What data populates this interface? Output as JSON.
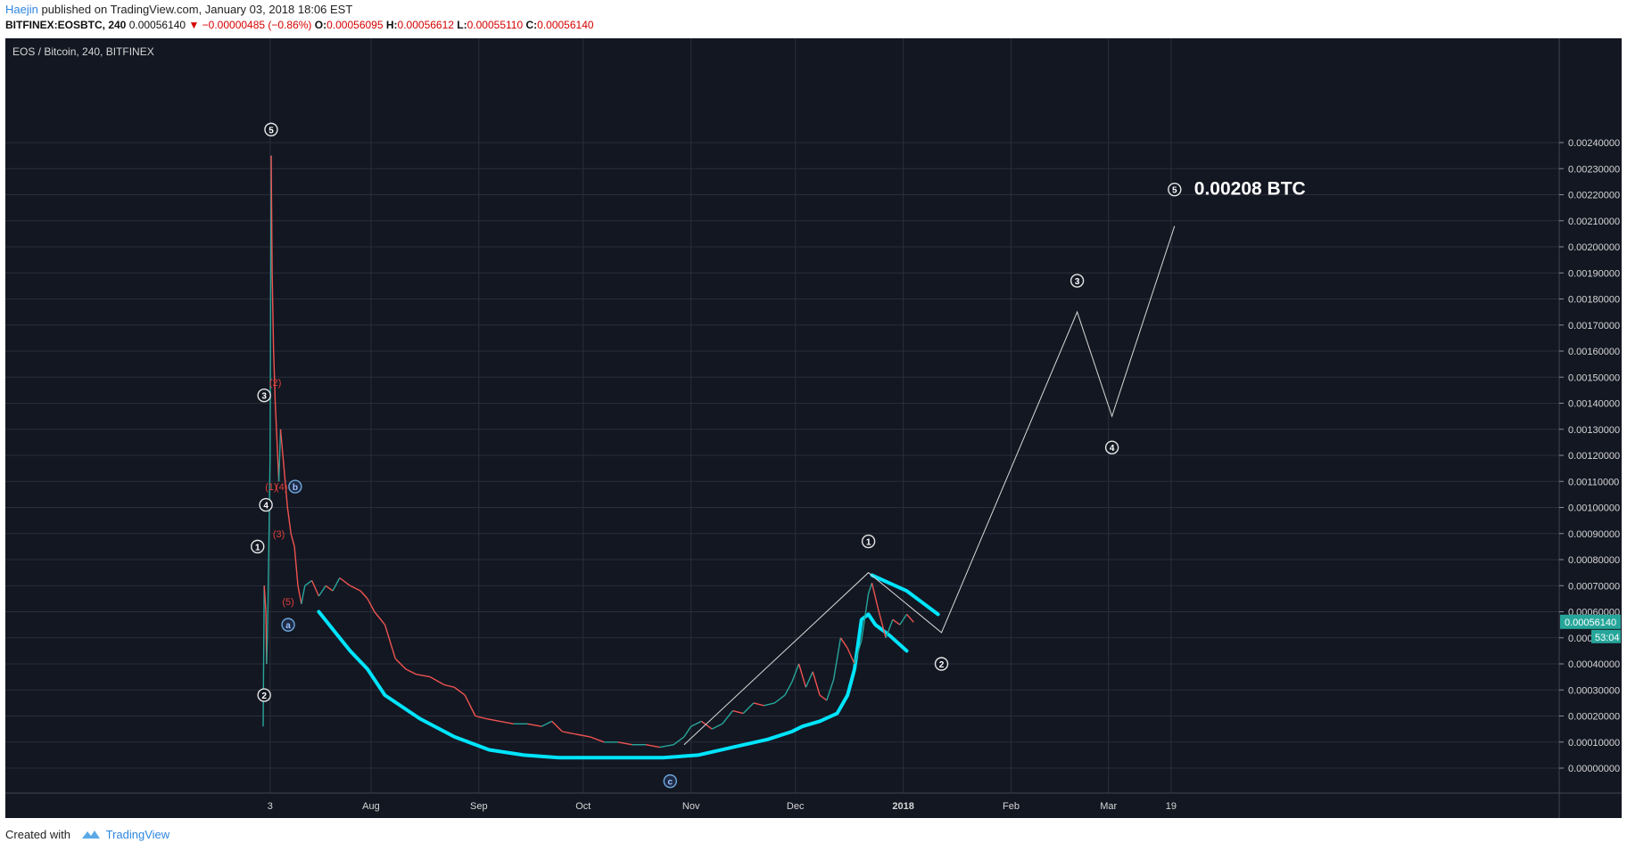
{
  "header": {
    "author": "Haejin",
    "published_text": " published on TradingView.com, January 03, 2018 18:06 EST",
    "symbol_interval": "BITFINEX:EOSBTC, 240",
    "last": "0.00056140",
    "change": "▼ −0.00000485 (−0.86%)",
    "o_label": "O:",
    "o_value": "0.00056095",
    "h_label": "H:",
    "h_value": "0.00056612",
    "l_label": "L:",
    "l_value": "0.00055110",
    "c_label": "C:",
    "c_value": "0.00056140"
  },
  "chart_title": "EOS / Bitcoin, 240, BITFINEX",
  "footer": {
    "created_with": "Created with",
    "brand": "TradingView"
  },
  "colors": {
    "background": "#131722",
    "curve": "#00e5ff",
    "up": "#26a69a",
    "down": "#ef5350",
    "grid": "#2a2e39",
    "price_tag": "#26a69a"
  },
  "chart_data": {
    "type": "line",
    "ylim": [
      0,
      0.0025
    ],
    "y_ticks": [
      "0.00240000",
      "0.00230000",
      "0.00220000",
      "0.00210000",
      "0.00200000",
      "0.00190000",
      "0.00180000",
      "0.00170000",
      "0.00160000",
      "0.00150000",
      "0.00140000",
      "0.00130000",
      "0.00120000",
      "0.00110000",
      "0.00100000",
      "0.00090000",
      "0.00080000",
      "0.00070000",
      "0.00060000",
      "0.00050000",
      "0.00040000",
      "0.00030000",
      "0.00020000",
      "0.00010000",
      "0.00000000"
    ],
    "x_ticks": [
      "3",
      "Aug",
      "Sep",
      "Oct",
      "Nov",
      "Dec",
      "2018",
      "Feb",
      "Mar",
      "19"
    ],
    "x_tick_days": [
      2,
      31,
      62,
      92,
      123,
      153,
      184,
      215,
      243,
      261
    ],
    "last_price_label": "0.00056140",
    "countdown_label": "53:04",
    "price_series": {
      "name": "EOSBTC",
      "points": [
        [
          0,
          0.00016
        ],
        [
          0.3,
          0.0007
        ],
        [
          0.8,
          0.0006
        ],
        [
          1.0,
          0.0004
        ],
        [
          1.3,
          0.00055
        ],
        [
          1.7,
          0.0009
        ],
        [
          2.0,
          0.0012
        ],
        [
          2.3,
          0.00235
        ],
        [
          2.6,
          0.0019
        ],
        [
          3.0,
          0.0016
        ],
        [
          3.5,
          0.0014
        ],
        [
          4.0,
          0.00125
        ],
        [
          4.5,
          0.0011
        ],
        [
          5,
          0.0013
        ],
        [
          6,
          0.00115
        ],
        [
          7,
          0.001
        ],
        [
          8,
          0.0009
        ],
        [
          9,
          0.00085
        ],
        [
          10,
          0.0007
        ],
        [
          11,
          0.00063
        ],
        [
          12,
          0.0007
        ],
        [
          14,
          0.00072
        ],
        [
          16,
          0.00066
        ],
        [
          18,
          0.0007
        ],
        [
          20,
          0.00068
        ],
        [
          22,
          0.00073
        ],
        [
          25,
          0.0007
        ],
        [
          28,
          0.00068
        ],
        [
          30,
          0.00065
        ],
        [
          32,
          0.0006
        ],
        [
          35,
          0.00055
        ],
        [
          38,
          0.00042
        ],
        [
          41,
          0.00038
        ],
        [
          44,
          0.00036
        ],
        [
          48,
          0.00035
        ],
        [
          52,
          0.00032
        ],
        [
          55,
          0.00031
        ],
        [
          58,
          0.00028
        ],
        [
          61,
          0.0002
        ],
        [
          64,
          0.00019
        ],
        [
          68,
          0.00018
        ],
        [
          72,
          0.00017
        ],
        [
          76,
          0.00017
        ],
        [
          80,
          0.00016
        ],
        [
          83,
          0.00018
        ],
        [
          86,
          0.00014
        ],
        [
          90,
          0.00013
        ],
        [
          94,
          0.00012
        ],
        [
          98,
          0.0001
        ],
        [
          102,
          0.0001
        ],
        [
          106,
          9e-05
        ],
        [
          110,
          9e-05
        ],
        [
          114,
          8e-05
        ],
        [
          118,
          9e-05
        ],
        [
          121,
          0.00012
        ],
        [
          123,
          0.00016
        ],
        [
          126,
          0.00018
        ],
        [
          129,
          0.00015
        ],
        [
          132,
          0.00017
        ],
        [
          135,
          0.00022
        ],
        [
          138,
          0.00021
        ],
        [
          141,
          0.00025
        ],
        [
          144,
          0.00024
        ],
        [
          147,
          0.00025
        ],
        [
          150,
          0.00028
        ],
        [
          152,
          0.00033
        ],
        [
          154,
          0.0004
        ],
        [
          156,
          0.00031
        ],
        [
          158,
          0.00037
        ],
        [
          160,
          0.00028
        ],
        [
          162,
          0.00026
        ],
        [
          164,
          0.00034
        ],
        [
          166,
          0.0005
        ],
        [
          168,
          0.00046
        ],
        [
          170,
          0.0004
        ],
        [
          172,
          0.00049
        ],
        [
          174,
          0.00067
        ],
        [
          175,
          0.00071
        ],
        [
          177,
          0.0006
        ],
        [
          179,
          0.0005
        ],
        [
          181,
          0.00057
        ],
        [
          183,
          0.00055
        ],
        [
          185,
          0.00059
        ],
        [
          187,
          0.00056
        ]
      ]
    },
    "projection_series": {
      "name": "",
      "points": [
        [
          121,
          9e-05
        ],
        [
          174,
          0.00075
        ],
        [
          195,
          0.00052
        ],
        [
          234,
          0.00175
        ],
        [
          244,
          0.00135
        ],
        [
          262,
          0.00208
        ]
      ]
    },
    "annotations": [
      {
        "text": "5",
        "x": 2.3,
        "y": 0.00245,
        "style": "white"
      },
      {
        "text": "3",
        "x": 0.3,
        "y": 0.00143,
        "style": "white"
      },
      {
        "text": "4",
        "x": 0.8,
        "y": 0.00101,
        "style": "white"
      },
      {
        "text": "1",
        "x": -1.6,
        "y": 0.00085,
        "style": "white"
      },
      {
        "text": "2",
        "x": 0.3,
        "y": 0.00028,
        "style": "white"
      },
      {
        "text": "(2)",
        "x": 3.5,
        "y": 0.00148,
        "style": "red"
      },
      {
        "text": "(1)",
        "x": 2.3,
        "y": 0.00108,
        "style": "red"
      },
      {
        "text": "(4)",
        "x": 5.3,
        "y": 0.00108,
        "style": "red"
      },
      {
        "text": "(3)",
        "x": 4.5,
        "y": 0.0009,
        "style": "red"
      },
      {
        "text": "(5)",
        "x": 7.2,
        "y": 0.00064,
        "style": "red"
      },
      {
        "text": "b",
        "x": 9.2,
        "y": 0.00108,
        "style": "blue"
      },
      {
        "text": "a",
        "x": 7.2,
        "y": 0.00055,
        "style": "blue"
      },
      {
        "text": "c",
        "x": 117,
        "y": -5e-05,
        "style": "blue"
      },
      {
        "text": "1",
        "x": 174,
        "y": 0.00087,
        "style": "white"
      },
      {
        "text": "2",
        "x": 195,
        "y": 0.0004,
        "style": "white"
      },
      {
        "text": "3",
        "x": 234,
        "y": 0.00187,
        "style": "white"
      },
      {
        "text": "4",
        "x": 244,
        "y": 0.00123,
        "style": "white"
      },
      {
        "text": "5",
        "x": 262,
        "y": 0.00222,
        "style": "white"
      }
    ],
    "target_label": "0.00208 BTC",
    "target_point": [
      262,
      0.00222
    ],
    "highlight_curves": [
      {
        "name": "",
        "points": [
          [
            16,
            0.0006
          ],
          [
            25,
            0.00045
          ],
          [
            30,
            0.00038
          ],
          [
            35,
            0.00028
          ],
          [
            45,
            0.00019
          ],
          [
            55,
            0.00012
          ],
          [
            65,
            7e-05
          ],
          [
            75,
            5e-05
          ],
          [
            85,
            4e-05
          ],
          [
            95,
            4e-05
          ],
          [
            105,
            4e-05
          ],
          [
            115,
            4e-05
          ],
          [
            125,
            5e-05
          ],
          [
            135,
            8e-05
          ],
          [
            145,
            0.00011
          ],
          [
            152,
            0.00014
          ],
          [
            155,
            0.00016
          ],
          [
            160,
            0.00018
          ],
          [
            165,
            0.00021
          ],
          [
            168,
            0.00028
          ],
          [
            170,
            0.00038
          ],
          [
            172,
            0.00057
          ],
          [
            174,
            0.00059
          ],
          [
            176,
            0.00055
          ],
          [
            180,
            0.00051
          ],
          [
            185,
            0.00045
          ]
        ]
      },
      {
        "name": "",
        "points": [
          [
            175,
            0.00074
          ],
          [
            180,
            0.00071
          ],
          [
            185,
            0.00068
          ],
          [
            190,
            0.00063
          ],
          [
            194,
            0.00059
          ]
        ]
      }
    ]
  }
}
